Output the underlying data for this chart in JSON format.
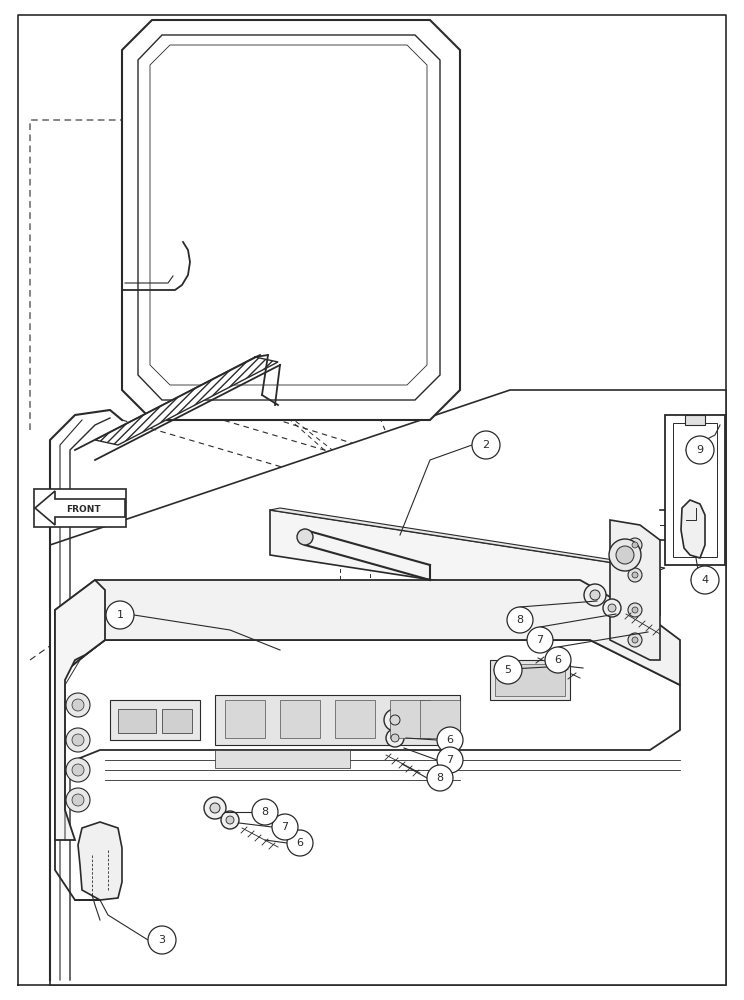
{
  "background_color": "#ffffff",
  "line_color": "#2a2a2a",
  "fig_width": 7.44,
  "fig_height": 10.0,
  "dpi": 100
}
